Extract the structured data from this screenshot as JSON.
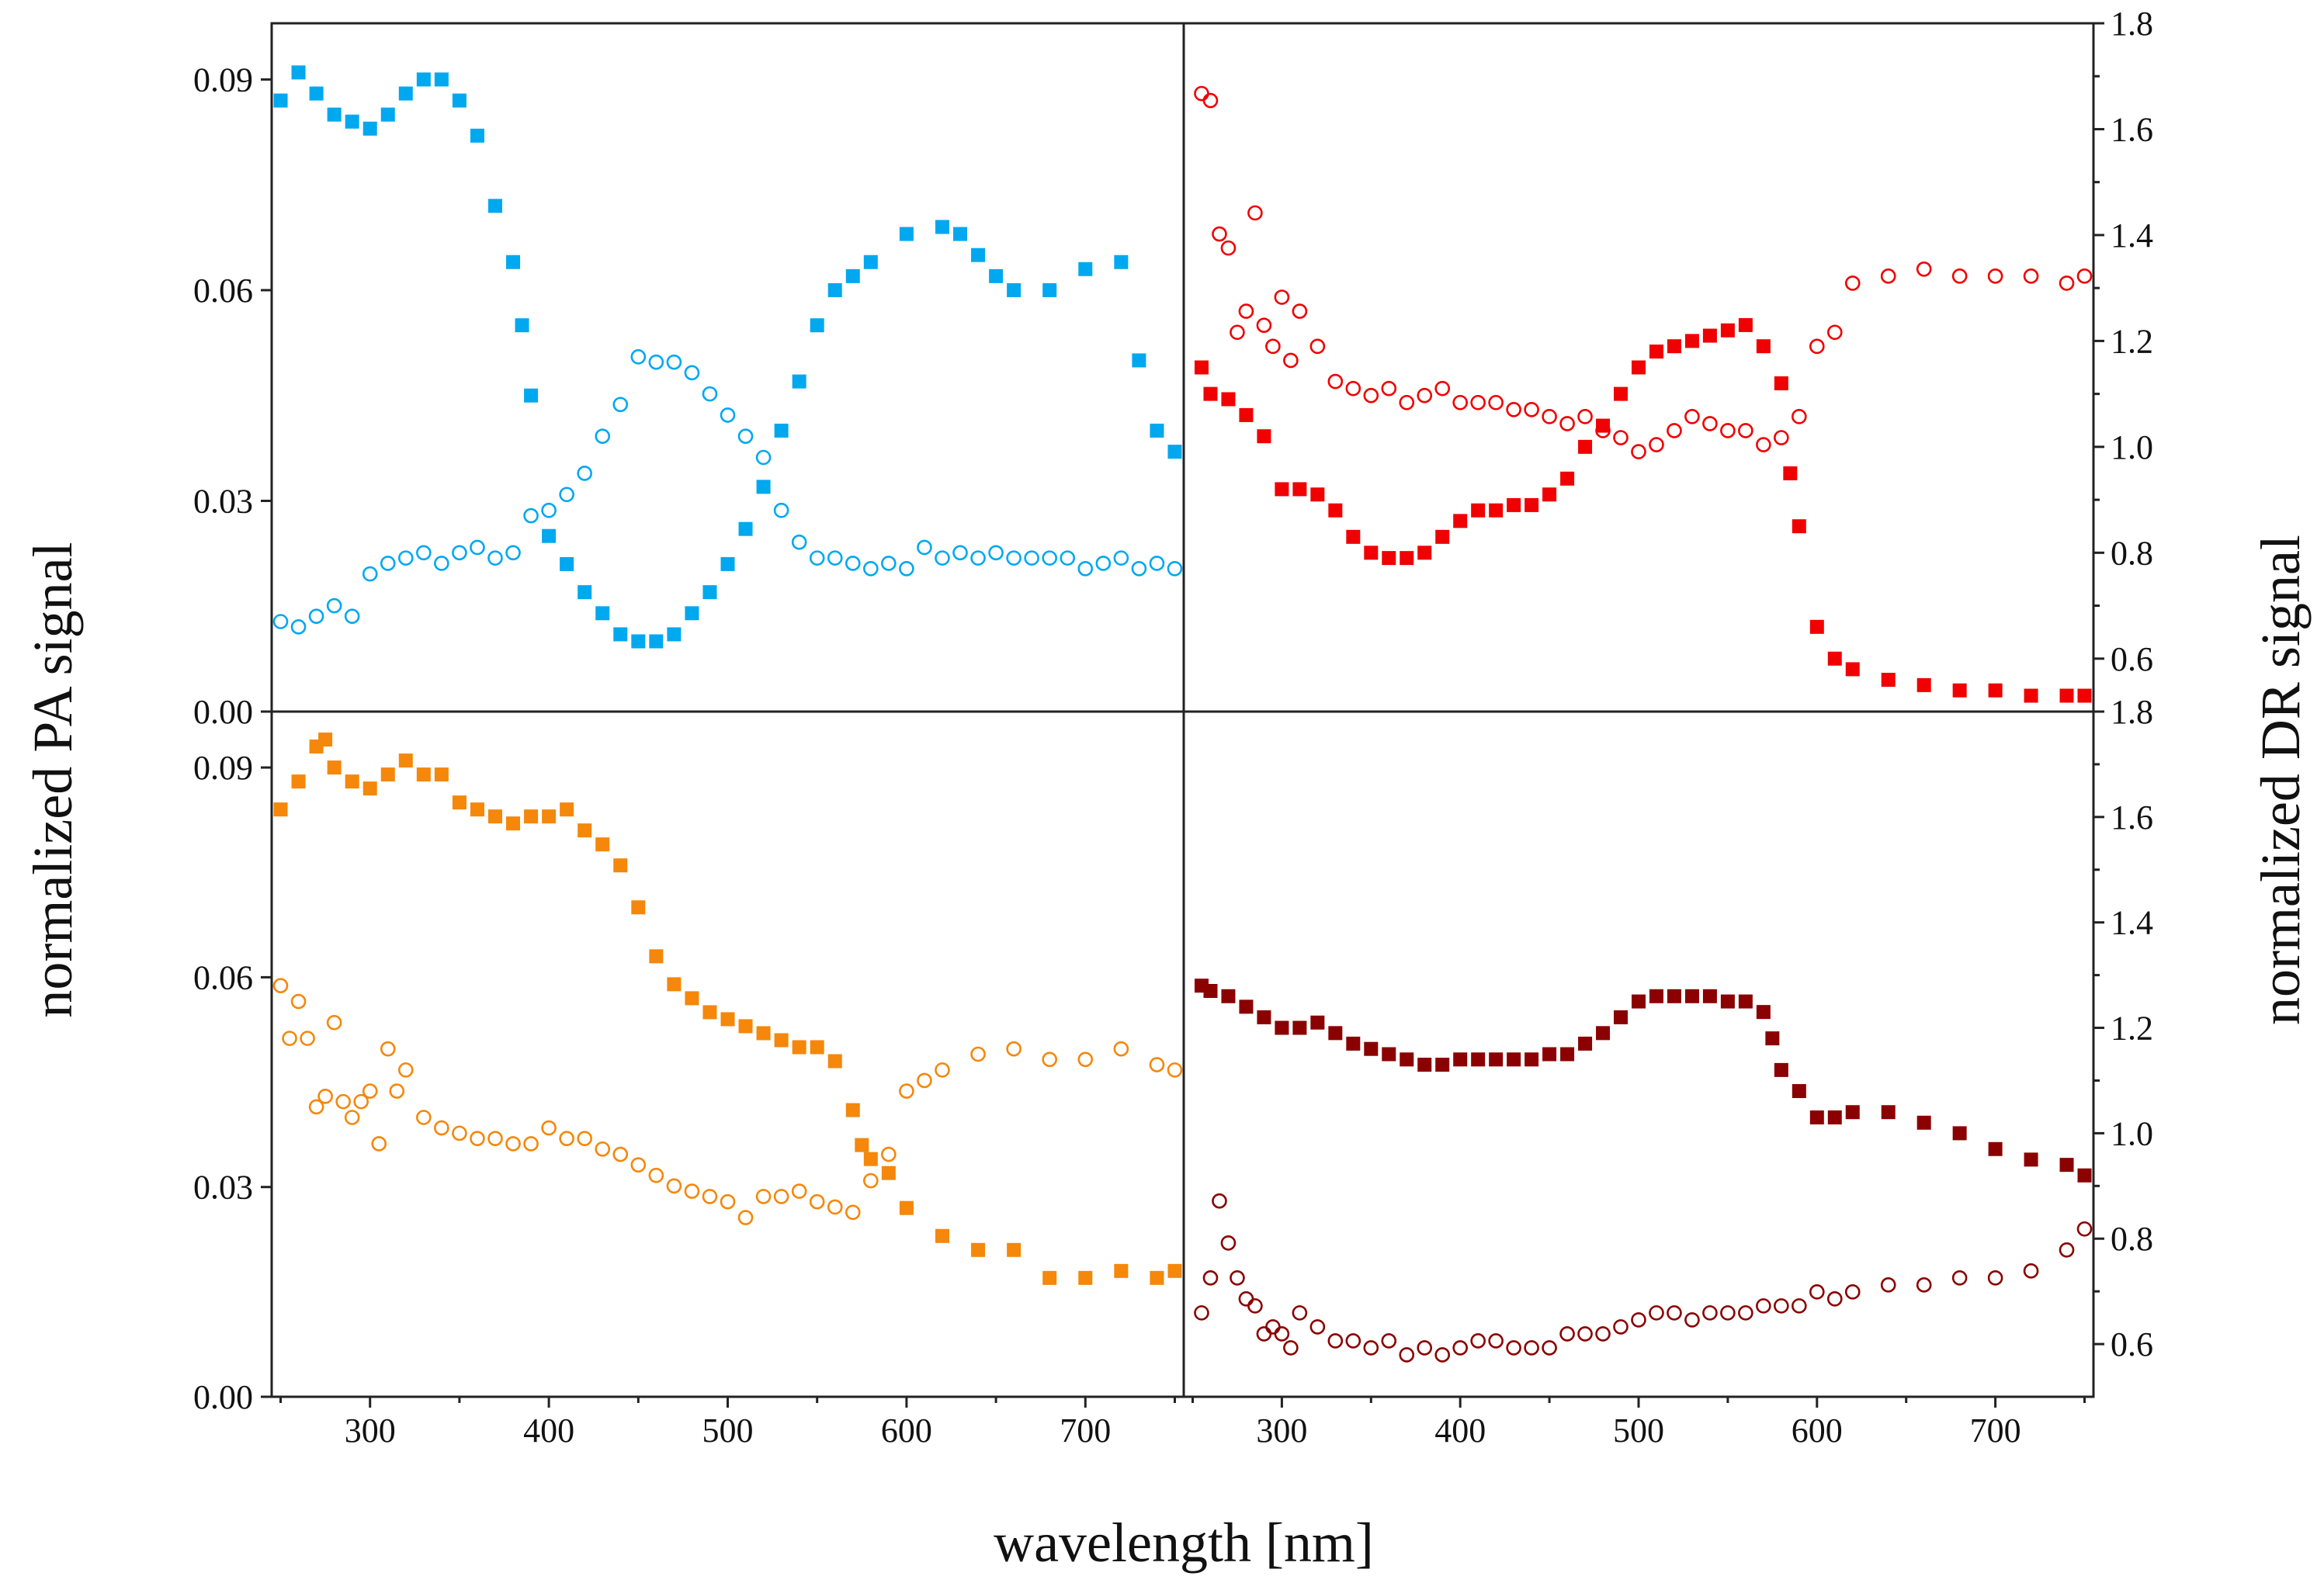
{
  "chart_data": {
    "type": "scatter",
    "layout": "2x2 panels sharing x axis",
    "xlabel": "wavelength [nm]",
    "ylabel_left": "normalized PA signal",
    "ylabel_right": "normalized DR signal",
    "xlim": [
      245,
      755
    ],
    "xticks": [
      300,
      400,
      500,
      600,
      700
    ],
    "left_ylim": [
      0,
      0.098
    ],
    "left_yticks": [
      "0.00",
      "0.03",
      "0.06",
      "0.09"
    ],
    "right_ylim": [
      0.5,
      1.8
    ],
    "right_yticks": [
      "0.6",
      "0.8",
      "1.0",
      "1.2",
      "1.4",
      "1.6",
      "1.8"
    ],
    "panels": [
      {
        "id": "top-left",
        "color": "#00a8f0",
        "series": [
          {
            "name": "PA signal (filled squares)",
            "marker": "square",
            "axis": "left",
            "x": [
              250,
              260,
              270,
              280,
              290,
              300,
              310,
              320,
              330,
              340,
              350,
              360,
              370,
              380,
              385,
              390,
              400,
              410,
              420,
              430,
              440,
              450,
              460,
              470,
              480,
              490,
              500,
              510,
              520,
              530,
              540,
              550,
              560,
              570,
              580,
              600,
              620,
              630,
              640,
              650,
              660,
              680,
              700,
              720,
              730,
              740,
              750
            ],
            "y": [
              0.087,
              0.091,
              0.088,
              0.085,
              0.084,
              0.083,
              0.085,
              0.088,
              0.09,
              0.09,
              0.087,
              0.082,
              0.072,
              0.064,
              0.055,
              0.045,
              0.025,
              0.021,
              0.017,
              0.014,
              0.011,
              0.01,
              0.01,
              0.011,
              0.014,
              0.017,
              0.021,
              0.026,
              0.032,
              0.04,
              0.047,
              0.055,
              0.06,
              0.062,
              0.064,
              0.068,
              0.069,
              0.068,
              0.065,
              0.062,
              0.06,
              0.06,
              0.063,
              0.064,
              0.05,
              0.04,
              0.037
            ]
          },
          {
            "name": "DR signal (open circles)",
            "marker": "open-circle",
            "axis": "right",
            "x": [
              250,
              260,
              270,
              280,
              290,
              300,
              310,
              320,
              330,
              340,
              350,
              360,
              370,
              380,
              390,
              400,
              410,
              420,
              430,
              440,
              450,
              460,
              470,
              480,
              490,
              500,
              510,
              520,
              530,
              540,
              550,
              560,
              570,
              580,
              590,
              600,
              610,
              620,
              630,
              640,
              650,
              660,
              670,
              680,
              690,
              700,
              710,
              720,
              730,
              740,
              750
            ],
            "y": [
              0.67,
              0.66,
              0.68,
              0.7,
              0.68,
              0.76,
              0.78,
              0.79,
              0.8,
              0.78,
              0.8,
              0.81,
              0.79,
              0.8,
              0.87,
              0.88,
              0.91,
              0.95,
              1.02,
              1.08,
              1.17,
              1.16,
              1.16,
              1.14,
              1.1,
              1.06,
              1.02,
              0.98,
              0.88,
              0.82,
              0.79,
              0.79,
              0.78,
              0.77,
              0.78,
              0.77,
              0.81,
              0.79,
              0.8,
              0.79,
              0.8,
              0.79,
              0.79,
              0.79,
              0.79,
              0.77,
              0.78,
              0.79,
              0.77,
              0.78,
              0.77
            ]
          }
        ]
      },
      {
        "id": "top-right",
        "color": "#f00000",
        "series": [
          {
            "name": "DR signal (filled squares)",
            "marker": "square",
            "axis": "right",
            "x": [
              255,
              260,
              270,
              280,
              290,
              300,
              310,
              320,
              330,
              340,
              350,
              360,
              370,
              380,
              390,
              400,
              410,
              420,
              430,
              440,
              450,
              460,
              470,
              480,
              490,
              500,
              510,
              520,
              530,
              540,
              550,
              560,
              570,
              580,
              585,
              590,
              600,
              610,
              620,
              640,
              660,
              680,
              700,
              720,
              740,
              750
            ],
            "y": [
              1.15,
              1.1,
              1.09,
              1.06,
              1.02,
              0.92,
              0.92,
              0.91,
              0.88,
              0.83,
              0.8,
              0.79,
              0.79,
              0.8,
              0.83,
              0.86,
              0.88,
              0.88,
              0.89,
              0.89,
              0.91,
              0.94,
              1.0,
              1.04,
              1.1,
              1.15,
              1.18,
              1.19,
              1.2,
              1.21,
              1.22,
              1.23,
              1.19,
              1.12,
              0.95,
              0.85,
              0.66,
              0.6,
              0.58,
              0.56,
              0.55,
              0.54,
              0.54,
              0.53,
              0.53,
              0.53
            ]
          },
          {
            "name": "PA signal (open circles)",
            "marker": "open-circle",
            "axis": "left",
            "x": [
              255,
              260,
              265,
              270,
              275,
              280,
              285,
              290,
              295,
              300,
              305,
              310,
              320,
              330,
              340,
              350,
              360,
              370,
              380,
              390,
              400,
              410,
              420,
              430,
              440,
              450,
              460,
              470,
              480,
              490,
              500,
              510,
              520,
              530,
              540,
              550,
              560,
              570,
              580,
              590,
              600,
              610,
              620,
              640,
              660,
              680,
              700,
              720,
              740,
              750
            ],
            "y": [
              0.088,
              0.087,
              0.068,
              0.066,
              0.054,
              0.057,
              0.071,
              0.055,
              0.052,
              0.059,
              0.05,
              0.057,
              0.052,
              0.047,
              0.046,
              0.045,
              0.046,
              0.044,
              0.045,
              0.046,
              0.044,
              0.044,
              0.044,
              0.043,
              0.043,
              0.042,
              0.041,
              0.042,
              0.04,
              0.039,
              0.037,
              0.038,
              0.04,
              0.042,
              0.041,
              0.04,
              0.04,
              0.038,
              0.039,
              0.042,
              0.052,
              0.054,
              0.061,
              0.062,
              0.063,
              0.062,
              0.062,
              0.062,
              0.061,
              0.062
            ]
          }
        ]
      },
      {
        "id": "bottom-left",
        "color": "#f5870a",
        "series": [
          {
            "name": "PA signal (filled squares)",
            "marker": "square",
            "axis": "left",
            "x": [
              250,
              260,
              270,
              275,
              280,
              290,
              300,
              310,
              320,
              330,
              340,
              350,
              360,
              370,
              380,
              390,
              400,
              410,
              420,
              430,
              440,
              450,
              460,
              470,
              480,
              490,
              500,
              510,
              520,
              530,
              540,
              550,
              560,
              570,
              575,
              580,
              590,
              600,
              620,
              640,
              660,
              680,
              700,
              720,
              740,
              750
            ],
            "y": [
              0.084,
              0.088,
              0.093,
              0.094,
              0.09,
              0.088,
              0.087,
              0.089,
              0.091,
              0.089,
              0.089,
              0.085,
              0.084,
              0.083,
              0.082,
              0.083,
              0.083,
              0.084,
              0.081,
              0.079,
              0.076,
              0.07,
              0.063,
              0.059,
              0.057,
              0.055,
              0.054,
              0.053,
              0.052,
              0.051,
              0.05,
              0.05,
              0.048,
              0.041,
              0.036,
              0.034,
              0.032,
              0.027,
              0.023,
              0.021,
              0.021,
              0.017,
              0.017,
              0.018,
              0.017,
              0.018
            ]
          },
          {
            "name": "DR signal (open circles)",
            "marker": "open-circle",
            "axis": "right",
            "x": [
              250,
              255,
              260,
              265,
              270,
              275,
              280,
              285,
              290,
              295,
              300,
              305,
              310,
              315,
              320,
              330,
              340,
              350,
              360,
              370,
              380,
              390,
              400,
              410,
              420,
              430,
              440,
              450,
              460,
              470,
              480,
              490,
              500,
              510,
              520,
              530,
              540,
              550,
              560,
              570,
              580,
              590,
              600,
              610,
              620,
              640,
              660,
              680,
              700,
              720,
              740,
              750
            ],
            "y": [
              1.28,
              1.18,
              1.25,
              1.18,
              1.05,
              1.07,
              1.21,
              1.06,
              1.03,
              1.06,
              1.08,
              0.98,
              1.16,
              1.08,
              1.12,
              1.03,
              1.01,
              1.0,
              0.99,
              0.99,
              0.98,
              0.98,
              1.01,
              0.99,
              0.99,
              0.97,
              0.96,
              0.94,
              0.92,
              0.9,
              0.89,
              0.88,
              0.87,
              0.84,
              0.88,
              0.88,
              0.89,
              0.87,
              0.86,
              0.85,
              0.91,
              0.96,
              1.08,
              1.1,
              1.12,
              1.15,
              1.16,
              1.14,
              1.14,
              1.16,
              1.13,
              1.12
            ]
          }
        ]
      },
      {
        "id": "bottom-right",
        "color": "#8b0000",
        "series": [
          {
            "name": "DR signal (filled squares)",
            "marker": "square",
            "axis": "right",
            "x": [
              255,
              260,
              270,
              280,
              290,
              300,
              310,
              320,
              330,
              340,
              350,
              360,
              370,
              380,
              390,
              400,
              410,
              420,
              430,
              440,
              450,
              460,
              470,
              480,
              490,
              500,
              510,
              520,
              530,
              540,
              550,
              560,
              570,
              575,
              580,
              590,
              600,
              610,
              620,
              640,
              660,
              680,
              700,
              720,
              740,
              750
            ],
            "y": [
              1.28,
              1.27,
              1.26,
              1.24,
              1.22,
              1.2,
              1.2,
              1.21,
              1.19,
              1.17,
              1.16,
              1.15,
              1.14,
              1.13,
              1.13,
              1.14,
              1.14,
              1.14,
              1.14,
              1.14,
              1.15,
              1.15,
              1.17,
              1.19,
              1.22,
              1.25,
              1.26,
              1.26,
              1.26,
              1.26,
              1.25,
              1.25,
              1.23,
              1.18,
              1.12,
              1.08,
              1.03,
              1.03,
              1.04,
              1.04,
              1.02,
              1.0,
              0.97,
              0.95,
              0.94,
              0.92
            ]
          },
          {
            "name": "PA signal (open circles)",
            "marker": "open-circle",
            "axis": "left",
            "x": [
              255,
              260,
              265,
              270,
              275,
              280,
              285,
              290,
              295,
              300,
              305,
              310,
              320,
              330,
              340,
              350,
              360,
              370,
              380,
              390,
              400,
              410,
              420,
              430,
              440,
              450,
              460,
              470,
              480,
              490,
              500,
              510,
              520,
              530,
              540,
              550,
              560,
              570,
              580,
              590,
              600,
              610,
              620,
              640,
              660,
              680,
              700,
              720,
              740,
              750
            ],
            "y": [
              0.012,
              0.017,
              0.028,
              0.022,
              0.017,
              0.014,
              0.013,
              0.009,
              0.01,
              0.009,
              0.007,
              0.012,
              0.01,
              0.008,
              0.008,
              0.007,
              0.008,
              0.006,
              0.007,
              0.006,
              0.007,
              0.008,
              0.008,
              0.007,
              0.007,
              0.007,
              0.009,
              0.009,
              0.009,
              0.01,
              0.011,
              0.012,
              0.012,
              0.011,
              0.012,
              0.012,
              0.012,
              0.013,
              0.013,
              0.013,
              0.015,
              0.014,
              0.015,
              0.016,
              0.016,
              0.017,
              0.017,
              0.018,
              0.021,
              0.024
            ]
          }
        ]
      }
    ]
  }
}
